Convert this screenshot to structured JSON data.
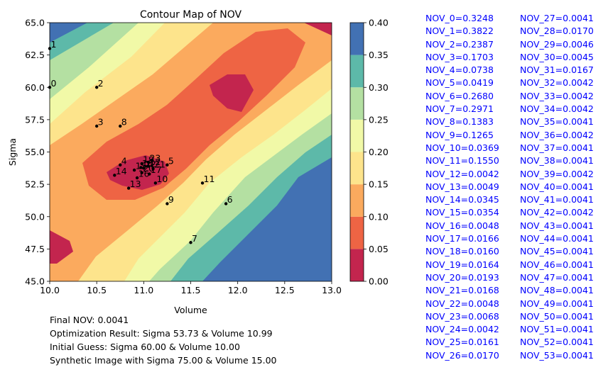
{
  "chart_data": {
    "type": "contour",
    "title": "Contour Map of NOV",
    "xlabel": "Volume",
    "ylabel": "Sigma",
    "xlim": [
      10.0,
      13.0
    ],
    "ylim": [
      45.0,
      65.0
    ],
    "x_ticks": [
      "10.0",
      "10.5",
      "11.0",
      "11.5",
      "12.0",
      "12.5",
      "13.0"
    ],
    "y_ticks": [
      "45.0",
      "47.5",
      "50.0",
      "52.5",
      "55.0",
      "57.5",
      "60.0",
      "62.5",
      "65.0"
    ],
    "colorbar": {
      "levels": [
        0.0,
        0.05,
        0.1,
        0.15,
        0.2,
        0.25,
        0.3,
        0.35,
        0.4
      ],
      "tick_labels": [
        "0.00",
        "0.05",
        "0.10",
        "0.15",
        "0.20",
        "0.25",
        "0.30",
        "0.35",
        "0.40"
      ],
      "colors": [
        "#c3254e",
        "#ee6444",
        "#fbaa5e",
        "#fde48c",
        "#f1f9a7",
        "#b4e0a2",
        "#5db9a9",
        "#4271b3"
      ]
    },
    "points": [
      {
        "label": "0",
        "x": 10.0,
        "y": 60.0
      },
      {
        "label": "1",
        "x": 10.0,
        "y": 63.0
      },
      {
        "label": "2",
        "x": 10.5,
        "y": 60.0
      },
      {
        "label": "3",
        "x": 10.5,
        "y": 57.0
      },
      {
        "label": "4",
        "x": 10.75,
        "y": 54.0
      },
      {
        "label": "5",
        "x": 11.25,
        "y": 54.0
      },
      {
        "label": "6",
        "x": 11.875,
        "y": 51.0
      },
      {
        "label": "7",
        "x": 11.5,
        "y": 48.0
      },
      {
        "label": "8",
        "x": 10.75,
        "y": 57.0
      },
      {
        "label": "9",
        "x": 11.25,
        "y": 51.0
      },
      {
        "label": "10",
        "x": 11.125,
        "y": 52.6
      },
      {
        "label": "11",
        "x": 11.625,
        "y": 52.6
      },
      {
        "label": "12",
        "x": 11.05,
        "y": 53.9
      },
      {
        "label": "13",
        "x": 10.84,
        "y": 52.2
      },
      {
        "label": "14",
        "x": 10.69,
        "y": 53.2
      },
      {
        "label": "15",
        "x": 10.9,
        "y": 53.6
      },
      {
        "label": "16",
        "x": 10.93,
        "y": 53.0
      },
      {
        "label": "17",
        "x": 11.06,
        "y": 53.3
      },
      {
        "label": "18",
        "x": 10.97,
        "y": 53.8
      },
      {
        "label": "19",
        "x": 10.98,
        "y": 54.1
      },
      {
        "label": "20",
        "x": 10.98,
        "y": 53.4
      },
      {
        "label": "21",
        "x": 11.1,
        "y": 53.7
      },
      {
        "label": "22",
        "x": 11.0,
        "y": 53.75
      },
      {
        "label": "23",
        "x": 11.05,
        "y": 54.2
      }
    ],
    "annotations": [
      "Final NOV: 0.0041",
      "Optimization Result: Sigma 53.73 & Volume 10.99",
      "Initial Guess: Sigma 60.00 & Volume 10.00",
      "Synthetic Image with Sigma 75.00 & Volume 15.00"
    ],
    "nov_values": [
      [
        "NOV_0=0.3248",
        "NOV_1=0.3822",
        "NOV_2=0.2387",
        "NOV_3=0.1703",
        "NOV_4=0.0738",
        "NOV_5=0.0419",
        "NOV_6=0.2680",
        "NOV_7=0.2971",
        "NOV_8=0.1383",
        "NOV_9=0.1265",
        "NOV_10=0.0369",
        "NOV_11=0.1550",
        "NOV_12=0.0042",
        "NOV_13=0.0049",
        "NOV_14=0.0345",
        "NOV_15=0.0354",
        "NOV_16=0.0048",
        "NOV_17=0.0166",
        "NOV_18=0.0160",
        "NOV_19=0.0164",
        "NOV_20=0.0193",
        "NOV_21=0.0168",
        "NOV_22=0.0048",
        "NOV_23=0.0068",
        "NOV_24=0.0042",
        "NOV_25=0.0161",
        "NOV_26=0.0170"
      ],
      [
        "NOV_27=0.0041",
        "NOV_28=0.0170",
        "NOV_29=0.0046",
        "NOV_30=0.0045",
        "NOV_31=0.0167",
        "NOV_32=0.0042",
        "NOV_33=0.0042",
        "NOV_34=0.0042",
        "NOV_35=0.0041",
        "NOV_36=0.0042",
        "NOV_37=0.0041",
        "NOV_38=0.0041",
        "NOV_39=0.0042",
        "NOV_40=0.0041",
        "NOV_41=0.0041",
        "NOV_42=0.0042",
        "NOV_43=0.0041",
        "NOV_44=0.0041",
        "NOV_45=0.0041",
        "NOV_46=0.0041",
        "NOV_47=0.0041",
        "NOV_48=0.0041",
        "NOV_49=0.0041",
        "NOV_50=0.0041",
        "NOV_51=0.0041",
        "NOV_52=0.0041",
        "NOV_53=0.0041"
      ]
    ]
  }
}
